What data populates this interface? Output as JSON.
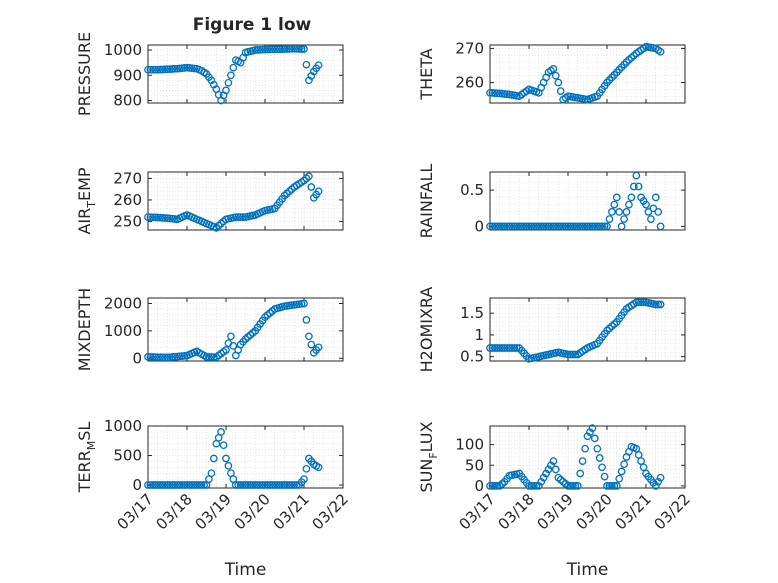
{
  "figure": {
    "title": "Figure 1 low",
    "marker_color": "#0072bd",
    "axis_color": "#262626",
    "grid_color": "#d9d9d9"
  },
  "chart_data": [
    {
      "id": "pressure",
      "type": "scatter",
      "ylabel": "PRESSURE",
      "xlabel": "",
      "ylim": [
        790,
        1020
      ],
      "yticks": [
        800,
        900,
        1000
      ],
      "ytick_labels": [
        "800",
        "900",
        "1000"
      ],
      "xlim": [
        "03/17",
        "03/22"
      ],
      "xtick_labels": [
        "03/17",
        "03/18",
        "03/19",
        "03/20",
        "03/21",
        "03/22"
      ],
      "grid": true,
      "x": [
        "03/17 00:00",
        "03/17 06:00",
        "03/17 12:00",
        "03/17 18:00",
        "03/18 00:00",
        "03/18 06:00",
        "03/18 09:00",
        "03/18 12:00",
        "03/18 15:00",
        "03/18 18:00",
        "03/18 21:00",
        "03/19 00:00",
        "03/19 03:00",
        "03/19 06:00",
        "03/19 09:00",
        "03/19 12:00",
        "03/19 18:00",
        "03/20 00:00",
        "03/20 06:00",
        "03/20 12:00",
        "03/20 18:00",
        "03/21 00:00",
        "03/21 03:00",
        "03/21 06:00",
        "03/21 09:00"
      ],
      "y": [
        922,
        922,
        924,
        926,
        930,
        926,
        918,
        905,
        880,
        845,
        800,
        840,
        900,
        960,
        950,
        990,
        1000,
        1002,
        1003,
        1004,
        1005,
        1004,
        880,
        915,
        940
      ]
    },
    {
      "id": "theta",
      "type": "scatter",
      "ylabel": "THETA",
      "xlabel": "",
      "ylim": [
        254,
        271
      ],
      "yticks": [
        260,
        270
      ],
      "ytick_labels": [
        "260",
        "270"
      ],
      "xlim": [
        "03/17",
        "03/22"
      ],
      "xtick_labels": [
        "03/17",
        "03/18",
        "03/19",
        "03/20",
        "03/21",
        "03/22"
      ],
      "grid": true,
      "x": [
        "03/17 00:00",
        "03/17 06:00",
        "03/17 12:00",
        "03/17 18:00",
        "03/18 00:00",
        "03/18 06:00",
        "03/18 12:00",
        "03/18 15:00",
        "03/18 18:00",
        "03/18 21:00",
        "03/19 00:00",
        "03/19 06:00",
        "03/19 12:00",
        "03/19 18:00",
        "03/20 00:00",
        "03/20 06:00",
        "03/20 12:00",
        "03/20 18:00",
        "03/21 00:00",
        "03/21 06:00",
        "03/21 09:00"
      ],
      "y": [
        257,
        256.8,
        256.5,
        256,
        258,
        257,
        263,
        264,
        260,
        255,
        256,
        255.5,
        255,
        256,
        260,
        263,
        266,
        268.5,
        270.5,
        270,
        269
      ]
    },
    {
      "id": "air_temp",
      "type": "scatter",
      "ylabel": "AIR_TEMP",
      "xlabel": "",
      "ylim": [
        246,
        273
      ],
      "yticks": [
        250,
        260,
        270
      ],
      "ytick_labels": [
        "250",
        "260",
        "270"
      ],
      "xlim": [
        "03/17",
        "03/22"
      ],
      "xtick_labels": [
        "03/17",
        "03/18",
        "03/19",
        "03/20",
        "03/21",
        "03/22"
      ],
      "grid": true,
      "x": [
        "03/17 00:00",
        "03/17 06:00",
        "03/17 12:00",
        "03/17 18:00",
        "03/18 00:00",
        "03/18 06:00",
        "03/18 12:00",
        "03/18 18:00",
        "03/19 00:00",
        "03/19 06:00",
        "03/19 12:00",
        "03/19 18:00",
        "03/20 00:00",
        "03/20 06:00",
        "03/20 12:00",
        "03/20 18:00",
        "03/21 00:00",
        "03/21 03:00",
        "03/21 06:00",
        "03/21 09:00"
      ],
      "y": [
        252,
        251.8,
        251.5,
        251,
        253,
        251,
        249,
        247,
        251,
        252,
        252,
        253,
        255,
        256,
        262,
        266,
        269,
        271,
        261,
        264
      ]
    },
    {
      "id": "rainfall",
      "type": "scatter",
      "ylabel": "RAINFALL",
      "xlabel": "",
      "ylim": [
        -0.05,
        0.75
      ],
      "yticks": [
        0,
        0.5
      ],
      "ytick_labels": [
        "0",
        "0.5"
      ],
      "xlim": [
        "03/17",
        "03/22"
      ],
      "xtick_labels": [
        "03/17",
        "03/18",
        "03/19",
        "03/20",
        "03/21",
        "03/22"
      ],
      "grid": true,
      "x": [
        "03/17 00:00",
        "03/17 12:00",
        "03/18 00:00",
        "03/18 12:00",
        "03/19 00:00",
        "03/19 12:00",
        "03/20 00:00",
        "03/20 03:00",
        "03/20 06:00",
        "03/20 09:00",
        "03/20 12:00",
        "03/20 15:00",
        "03/20 18:00",
        "03/20 21:00",
        "03/21 00:00",
        "03/21 03:00",
        "03/21 06:00",
        "03/21 09:00"
      ],
      "y": [
        0,
        0,
        0,
        0,
        0,
        0,
        0,
        0.2,
        0.4,
        0,
        0.2,
        0.4,
        0.7,
        0.4,
        0.3,
        0.1,
        0.4,
        0
      ]
    },
    {
      "id": "mixdepth",
      "type": "scatter",
      "ylabel": "MIXDEPTH",
      "xlabel": "",
      "ylim": [
        -100,
        2200
      ],
      "yticks": [
        0,
        1000,
        2000
      ],
      "ytick_labels": [
        "0",
        "1000",
        "2000"
      ],
      "xlim": [
        "03/17",
        "03/22"
      ],
      "xtick_labels": [
        "03/17",
        "03/18",
        "03/19",
        "03/20",
        "03/21",
        "03/22"
      ],
      "grid": true,
      "x": [
        "03/17 00:00",
        "03/17 06:00",
        "03/17 12:00",
        "03/17 18:00",
        "03/18 00:00",
        "03/18 06:00",
        "03/18 12:00",
        "03/18 18:00",
        "03/19 00:00",
        "03/19 03:00",
        "03/19 06:00",
        "03/19 09:00",
        "03/19 12:00",
        "03/19 18:00",
        "03/20 00:00",
        "03/20 06:00",
        "03/20 12:00",
        "03/20 18:00",
        "03/21 00:00",
        "03/21 03:00",
        "03/21 06:00",
        "03/21 09:00"
      ],
      "y": [
        50,
        40,
        30,
        60,
        100,
        250,
        50,
        40,
        300,
        800,
        100,
        500,
        700,
        1000,
        1500,
        1800,
        1900,
        1950,
        2000,
        800,
        200,
        400
      ]
    },
    {
      "id": "h2omixra",
      "type": "scatter",
      "ylabel": "H2OMIXRA",
      "xlabel": "",
      "ylim": [
        0.4,
        1.85
      ],
      "yticks": [
        0.5,
        1,
        1.5
      ],
      "ytick_labels": [
        "0.5",
        "1",
        "1.5"
      ],
      "xlim": [
        "03/17",
        "03/22"
      ],
      "xtick_labels": [
        "03/17",
        "03/18",
        "03/19",
        "03/20",
        "03/21",
        "03/22"
      ],
      "grid": true,
      "x": [
        "03/17 00:00",
        "03/17 06:00",
        "03/17 12:00",
        "03/17 18:00",
        "03/18 00:00",
        "03/18 06:00",
        "03/18 12:00",
        "03/18 18:00",
        "03/19 00:00",
        "03/19 06:00",
        "03/19 12:00",
        "03/19 18:00",
        "03/20 00:00",
        "03/20 06:00",
        "03/20 12:00",
        "03/20 18:00",
        "03/21 00:00",
        "03/21 06:00",
        "03/21 09:00"
      ],
      "y": [
        0.7,
        0.7,
        0.7,
        0.7,
        0.45,
        0.5,
        0.55,
        0.6,
        0.55,
        0.55,
        0.7,
        0.8,
        1.1,
        1.3,
        1.6,
        1.75,
        1.75,
        1.7,
        1.7
      ]
    },
    {
      "id": "terr_msl",
      "type": "scatter",
      "ylabel": "TERR_MSL",
      "xlabel": "Time",
      "ylim": [
        -50,
        1000
      ],
      "yticks": [
        0,
        500,
        1000
      ],
      "ytick_labels": [
        "0",
        "500",
        "1000"
      ],
      "xlim": [
        "03/17",
        "03/22"
      ],
      "xtick_labels": [
        "03/17",
        "03/18",
        "03/19",
        "03/20",
        "03/21",
        "03/22"
      ],
      "grid": true,
      "x": [
        "03/17 00:00",
        "03/17 12:00",
        "03/18 00:00",
        "03/18 12:00",
        "03/18 15:00",
        "03/18 18:00",
        "03/18 21:00",
        "03/19 00:00",
        "03/19 03:00",
        "03/19 06:00",
        "03/19 12:00",
        "03/20 00:00",
        "03/20 12:00",
        "03/20 21:00",
        "03/21 00:00",
        "03/21 03:00",
        "03/21 06:00",
        "03/21 09:00"
      ],
      "y": [
        0,
        0,
        0,
        0,
        200,
        700,
        900,
        450,
        200,
        0,
        0,
        0,
        0,
        0,
        100,
        450,
        350,
        300
      ]
    },
    {
      "id": "sun_flux",
      "type": "scatter",
      "ylabel": "SUN_FLUX",
      "xlabel": "Time",
      "ylim": [
        -5,
        145
      ],
      "yticks": [
        0,
        50,
        100
      ],
      "ytick_labels": [
        "0",
        "50",
        "100"
      ],
      "xlim": [
        "03/17",
        "03/22"
      ],
      "xtick_labels": [
        "03/17",
        "03/18",
        "03/19",
        "03/20",
        "03/21",
        "03/22"
      ],
      "grid": true,
      "x": [
        "03/17 00:00",
        "03/17 06:00",
        "03/17 09:00",
        "03/17 12:00",
        "03/17 18:00",
        "03/18 00:00",
        "03/18 06:00",
        "03/18 12:00",
        "03/18 15:00",
        "03/18 18:00",
        "03/19 00:00",
        "03/19 06:00",
        "03/19 09:00",
        "03/19 12:00",
        "03/19 15:00",
        "03/19 18:00",
        "03/20 00:00",
        "03/20 06:00",
        "03/20 12:00",
        "03/20 15:00",
        "03/20 18:00",
        "03/21 00:00",
        "03/21 06:00",
        "03/21 09:00"
      ],
      "y": [
        0,
        0,
        10,
        25,
        30,
        0,
        0,
        40,
        60,
        20,
        0,
        0,
        60,
        120,
        140,
        90,
        0,
        0,
        70,
        95,
        90,
        30,
        0,
        20
      ]
    }
  ]
}
